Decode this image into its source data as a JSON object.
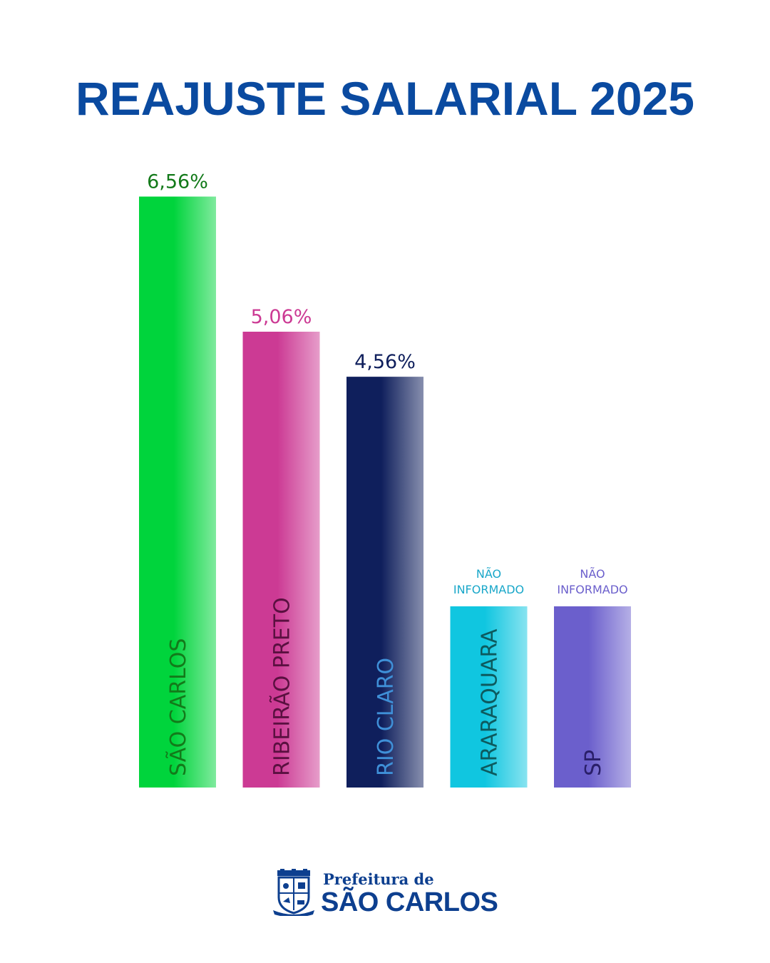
{
  "title": "REAJUSTE SALARIAL 2025",
  "chart_data": {
    "type": "bar",
    "title": "REAJUSTE SALARIAL 2025",
    "categories": [
      "SÃO CARLOS",
      "RIBEIRÃO PRETO",
      "RIO CLARO",
      "ARARAQUARA",
      "SP"
    ],
    "values": [
      6.56,
      5.06,
      4.56,
      null,
      null
    ],
    "labels": [
      "6,56%",
      "5,06%",
      "4,56%",
      "NÃO\nINFORMADO",
      "NÃO\nINFORMADO"
    ],
    "unit": "%",
    "ylim": [
      0,
      7
    ],
    "grid": false,
    "legend": "none",
    "colors": [
      "#00d43c",
      "#cc3a94",
      "#0f1f5c",
      "#10c6e0",
      "#6b5fcc"
    ],
    "label_colors": [
      "#137a1a",
      "#cc3a94",
      "#0f1f5c",
      "#19a7c9",
      "#6b5fcc"
    ],
    "category_text_colors": [
      "#137a1a",
      "#5a1040",
      "#3f90d8",
      "#0d5a5e",
      "#2a1f6a"
    ]
  },
  "footer": {
    "prefix": "Prefeitura de",
    "name": "SÃO CARLOS",
    "icon": "city-crest-icon"
  }
}
